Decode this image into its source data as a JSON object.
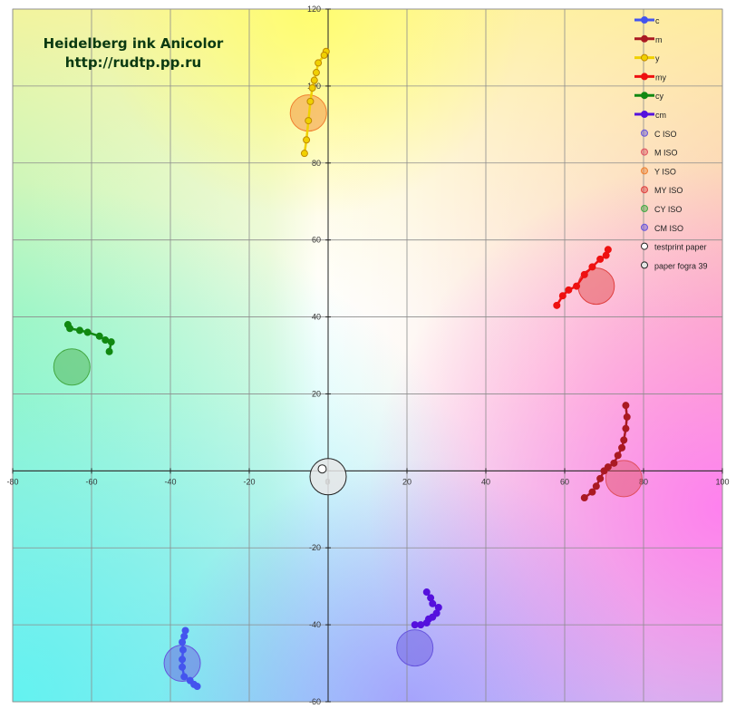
{
  "chart_data": {
    "type": "scatter",
    "title": "Heidelberg ink Anicolor",
    "subtitle": "http://rudtp.pp.ru",
    "xlim": [
      -80,
      100
    ],
    "ylim": [
      -60,
      120
    ],
    "x_ticks": [
      -80,
      -60,
      -40,
      -20,
      0,
      20,
      40,
      60,
      80,
      100
    ],
    "y_ticks": [
      -60,
      -40,
      -20,
      20,
      40,
      60,
      80,
      100,
      120
    ],
    "grid": true,
    "legend_position": "top-right",
    "series": [
      {
        "name": "c",
        "color": "#4455ee",
        "kind": "line",
        "points": [
          [
            -36.2,
            -41.5
          ],
          [
            -36.5,
            -43
          ],
          [
            -37,
            -44.5
          ],
          [
            -36.8,
            -46.5
          ],
          [
            -37,
            -49
          ],
          [
            -37,
            -51
          ],
          [
            -36.5,
            -53.5
          ],
          [
            -35,
            -54.5
          ],
          [
            -34,
            -55.5
          ],
          [
            -33.2,
            -56
          ]
        ]
      },
      {
        "name": "m",
        "color": "#aa1a22",
        "kind": "line",
        "points": [
          [
            75.5,
            17
          ],
          [
            75.8,
            14
          ],
          [
            75.5,
            11
          ],
          [
            75,
            8
          ],
          [
            74.5,
            6
          ],
          [
            73.5,
            4
          ],
          [
            72.5,
            2
          ],
          [
            71,
            1
          ],
          [
            70,
            0
          ],
          [
            69,
            -2
          ],
          [
            68,
            -4
          ],
          [
            67,
            -5.5
          ],
          [
            65,
            -7
          ]
        ]
      },
      {
        "name": "y",
        "color": "#f0d000",
        "kind": "line",
        "points": [
          [
            -0.5,
            109
          ],
          [
            -1,
            108
          ],
          [
            -2.5,
            106
          ],
          [
            -3,
            103.5
          ],
          [
            -3.5,
            101.5
          ],
          [
            -4,
            99.5
          ],
          [
            -4.5,
            96
          ],
          [
            -5,
            91
          ],
          [
            -5.5,
            86
          ],
          [
            -6,
            82.5
          ]
        ]
      },
      {
        "name": "my",
        "color": "#ee1111",
        "kind": "line",
        "points": [
          [
            71,
            57.5
          ],
          [
            70.5,
            56
          ],
          [
            69,
            55
          ],
          [
            67,
            53
          ],
          [
            65,
            51
          ],
          [
            63,
            48
          ],
          [
            61,
            47
          ],
          [
            59.5,
            45.5
          ],
          [
            58,
            43
          ]
        ]
      },
      {
        "name": "cy",
        "color": "#118811",
        "kind": "line",
        "points": [
          [
            -66,
            38
          ],
          [
            -65.5,
            37
          ],
          [
            -63,
            36.5
          ],
          [
            -61,
            36
          ],
          [
            -58,
            35
          ],
          [
            -56.5,
            34
          ],
          [
            -55,
            33.5
          ],
          [
            -55.5,
            31
          ]
        ]
      },
      {
        "name": "cm",
        "color": "#5511dd",
        "kind": "line",
        "points": [
          [
            25,
            -31.5
          ],
          [
            26,
            -33
          ],
          [
            26.5,
            -34.5
          ],
          [
            28,
            -35.5
          ],
          [
            27.5,
            -37
          ],
          [
            26.5,
            -38
          ],
          [
            25.5,
            -38.5
          ],
          [
            25,
            -39.5
          ],
          [
            23.5,
            -40
          ],
          [
            22,
            -40
          ]
        ]
      },
      {
        "name": "C ISO",
        "color": "#6655dd",
        "kind": "iso",
        "points": [
          [
            -37,
            -50
          ]
        ]
      },
      {
        "name": "M ISO",
        "color": "#e05060",
        "kind": "iso",
        "points": [
          [
            75,
            -2
          ]
        ]
      },
      {
        "name": "Y ISO",
        "color": "#f08030",
        "kind": "iso",
        "points": [
          [
            -5,
            93
          ]
        ]
      },
      {
        "name": "MY ISO",
        "color": "#e04040",
        "kind": "iso",
        "points": [
          [
            68,
            48
          ]
        ]
      },
      {
        "name": "CY ISO",
        "color": "#44aa44",
        "kind": "iso",
        "points": [
          [
            -65,
            27
          ]
        ]
      },
      {
        "name": "CM ISO",
        "color": "#6655dd",
        "kind": "iso",
        "points": [
          [
            22,
            -46
          ]
        ]
      },
      {
        "name": "testprint paper",
        "color": "#333333",
        "kind": "paper",
        "points": [
          [
            -1.5,
            0.5
          ]
        ]
      },
      {
        "name": "paper fogra 39",
        "color": "#333333",
        "kind": "paperiso",
        "points": [
          [
            0,
            -1.5
          ]
        ]
      }
    ]
  }
}
